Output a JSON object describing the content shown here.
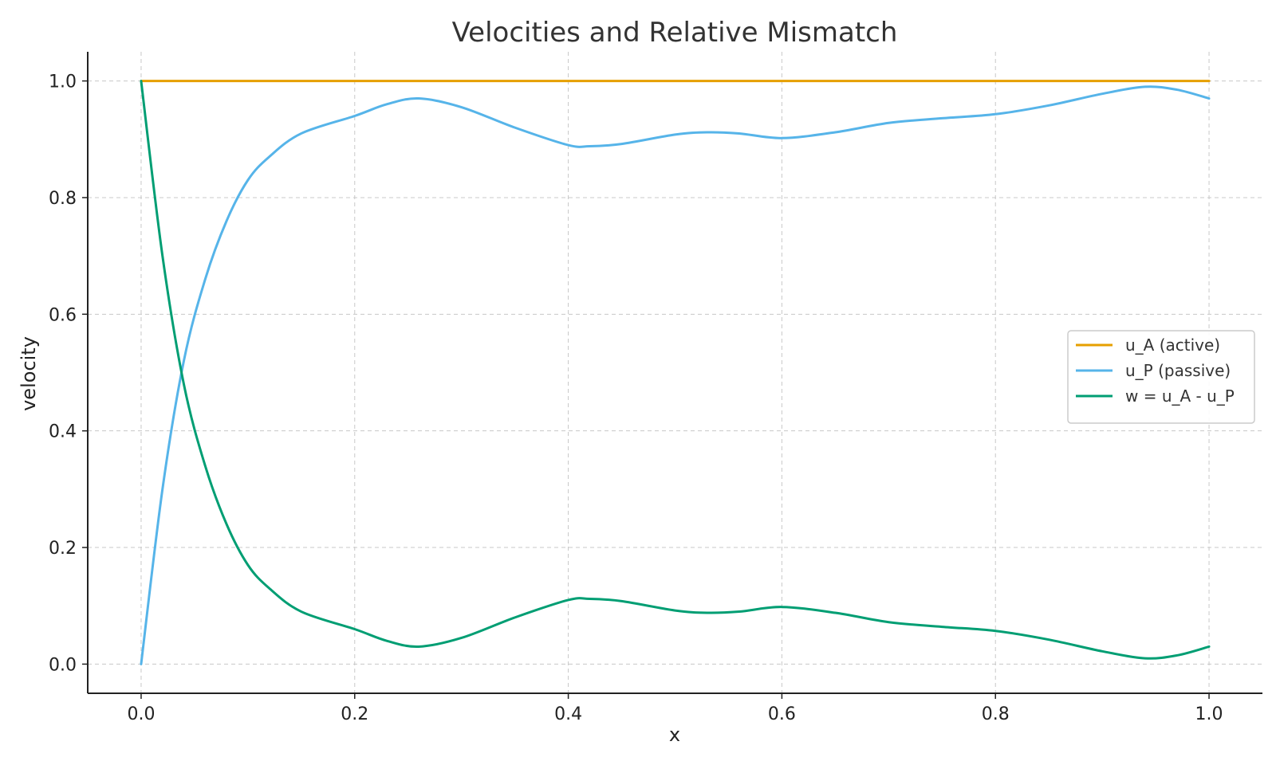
{
  "chart_data": {
    "type": "line",
    "title": "Velocities and Relative Mismatch",
    "xlabel": "x",
    "ylabel": "velocity",
    "xlim": [
      -0.05,
      1.05
    ],
    "ylim": [
      -0.05,
      1.05
    ],
    "xticks": [
      0.0,
      0.2,
      0.4,
      0.6,
      0.8,
      1.0
    ],
    "xtick_labels": [
      "0.0",
      "0.2",
      "0.4",
      "0.6",
      "0.8",
      "1.0"
    ],
    "yticks": [
      0.0,
      0.2,
      0.4,
      0.6,
      0.8,
      1.0
    ],
    "ytick_labels": [
      "0.0",
      "0.2",
      "0.4",
      "0.6",
      "0.8",
      "1.0"
    ],
    "grid": true,
    "legend_position": "center-right",
    "series": [
      {
        "name": "u_A (active)",
        "color": "#E69F00",
        "x": [
          0.0,
          1.0
        ],
        "y": [
          1.0,
          1.0
        ]
      },
      {
        "name": "u_P (passive)",
        "color": "#56B4E9",
        "x": [
          0.0,
          0.02,
          0.04,
          0.06,
          0.08,
          0.1,
          0.12,
          0.15,
          0.2,
          0.23,
          0.26,
          0.3,
          0.35,
          0.4,
          0.42,
          0.45,
          0.5,
          0.53,
          0.56,
          0.6,
          0.65,
          0.7,
          0.75,
          0.8,
          0.85,
          0.9,
          0.94,
          0.97,
          1.0
        ],
        "y": [
          0.0,
          0.3,
          0.52,
          0.66,
          0.76,
          0.83,
          0.87,
          0.91,
          0.94,
          0.96,
          0.97,
          0.955,
          0.92,
          0.89,
          0.888,
          0.892,
          0.908,
          0.912,
          0.91,
          0.902,
          0.912,
          0.928,
          0.936,
          0.943,
          0.958,
          0.978,
          0.99,
          0.985,
          0.97
        ]
      },
      {
        "name": "w = u_A - u_P",
        "color": "#009E73",
        "x": [
          0.0,
          0.02,
          0.04,
          0.06,
          0.08,
          0.1,
          0.12,
          0.15,
          0.2,
          0.23,
          0.26,
          0.3,
          0.35,
          0.4,
          0.42,
          0.45,
          0.5,
          0.53,
          0.56,
          0.6,
          0.65,
          0.7,
          0.75,
          0.8,
          0.85,
          0.9,
          0.94,
          0.97,
          1.0
        ],
        "y": [
          1.0,
          0.7,
          0.48,
          0.34,
          0.24,
          0.17,
          0.13,
          0.09,
          0.06,
          0.04,
          0.03,
          0.045,
          0.08,
          0.11,
          0.112,
          0.108,
          0.092,
          0.088,
          0.09,
          0.098,
          0.088,
          0.072,
          0.064,
          0.057,
          0.042,
          0.022,
          0.01,
          0.015,
          0.03
        ]
      }
    ]
  }
}
